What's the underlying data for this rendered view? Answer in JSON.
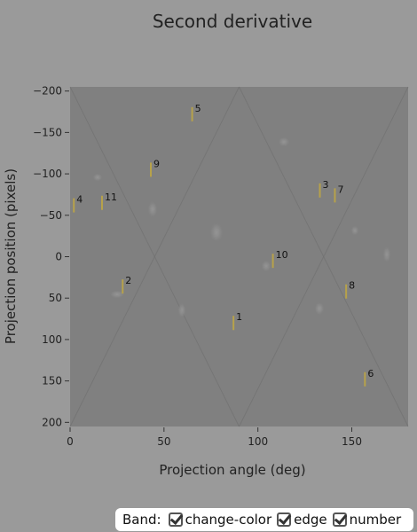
{
  "chart_data": {
    "type": "scatter",
    "title": "Second derivative",
    "xlabel": "Projection angle (deg)",
    "ylabel": "Projection position (pixels)",
    "xlim": [
      0,
      180
    ],
    "ylim": [
      -205,
      205
    ],
    "y_inverted": true,
    "x_ticks": [
      0,
      50,
      100,
      150
    ],
    "y_ticks": [
      -200,
      -150,
      -100,
      -50,
      0,
      50,
      100,
      150,
      200
    ],
    "grid": false,
    "background": "sinogram",
    "marker_color": "#b7a24a",
    "points": [
      {
        "label": "1",
        "x": 87,
        "y": 80
      },
      {
        "label": "2",
        "x": 28,
        "y": 36
      },
      {
        "label": "3",
        "x": 133,
        "y": -80
      },
      {
        "label": "4",
        "x": 2,
        "y": -62
      },
      {
        "label": "5",
        "x": 65,
        "y": -172
      },
      {
        "label": "6",
        "x": 157,
        "y": 148
      },
      {
        "label": "7",
        "x": 141,
        "y": -74
      },
      {
        "label": "8",
        "x": 147,
        "y": 42
      },
      {
        "label": "9",
        "x": 43,
        "y": -105
      },
      {
        "label": "10",
        "x": 108,
        "y": 5
      },
      {
        "label": "11",
        "x": 17,
        "y": -65
      }
    ]
  },
  "legend": {
    "label": "Band:",
    "items": [
      {
        "name": "change-color",
        "checked": true
      },
      {
        "name": "edge",
        "checked": true
      },
      {
        "name": "number",
        "checked": true
      }
    ]
  }
}
